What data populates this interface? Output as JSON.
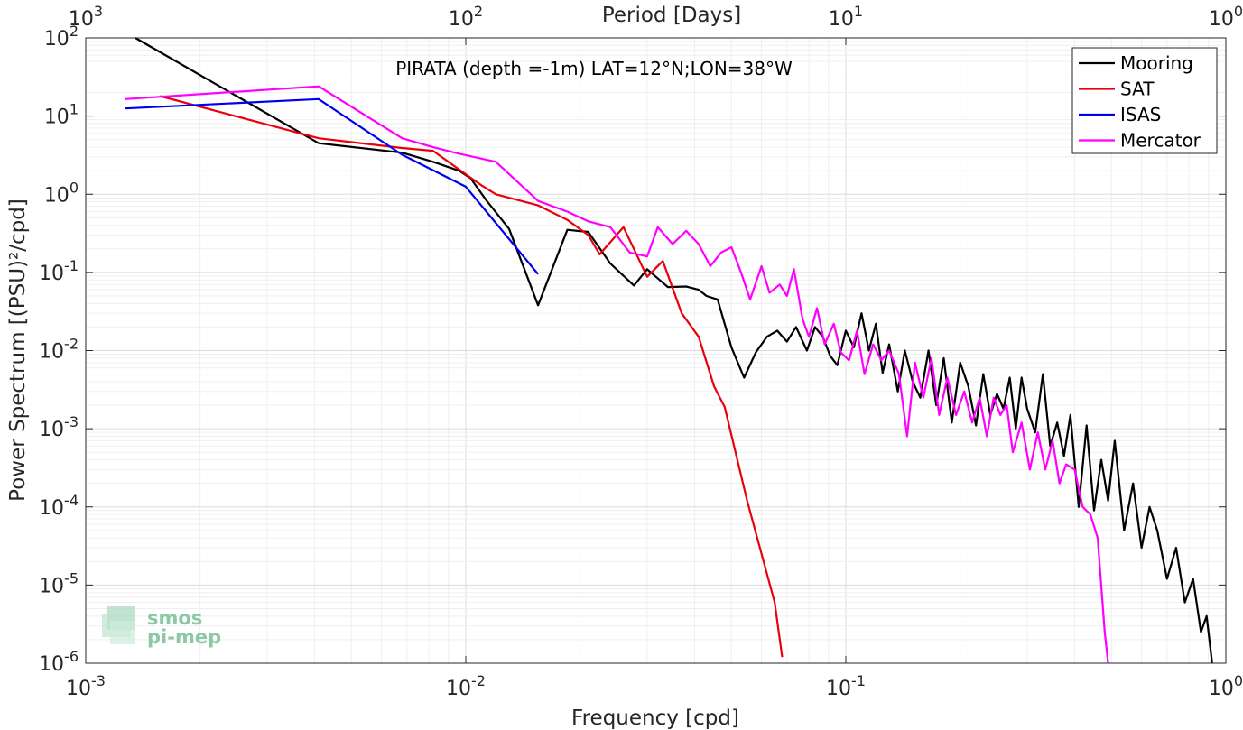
{
  "chart_data": {
    "type": "line",
    "title": "",
    "annotation": "PIRATA (depth =-1m) LAT=12°N;LON=38°W",
    "xlabel": "Frequency [cpd]",
    "ylabel": "Power Spectrum [(PSU)²/cpd]",
    "top_xlabel": "Period [Days]",
    "x_scale": "log",
    "y_scale": "log",
    "xlim": [
      0.001,
      1
    ],
    "ylim": [
      1e-06,
      100
    ],
    "grid": true,
    "legend_position": "top-right",
    "x_ticks": [
      {
        "b": "10",
        "e": "-3"
      },
      {
        "b": "10",
        "e": "-2"
      },
      {
        "b": "10",
        "e": "-1"
      },
      {
        "b": "10",
        "e": "0"
      }
    ],
    "top_ticks": [
      {
        "b": "10",
        "e": "3"
      },
      {
        "b": "10",
        "e": "2"
      },
      {
        "b": "10",
        "e": "1"
      },
      {
        "b": "10",
        "e": "0"
      }
    ],
    "y_ticks": [
      {
        "b": "10",
        "e": "-6"
      },
      {
        "b": "10",
        "e": "-5"
      },
      {
        "b": "10",
        "e": "-4"
      },
      {
        "b": "10",
        "e": "-3"
      },
      {
        "b": "10",
        "e": "-2"
      },
      {
        "b": "10",
        "e": "-1"
      },
      {
        "b": "10",
        "e": "0"
      },
      {
        "b": "10",
        "e": "1"
      },
      {
        "b": "10",
        "e": "2"
      }
    ],
    "series": [
      {
        "name": "Mooring",
        "color": "#000000",
        "points": [
          [
            0.00135,
            100
          ],
          [
            0.0041,
            4.5
          ],
          [
            0.0068,
            3.4
          ],
          [
            0.0082,
            2.6
          ],
          [
            0.0096,
            2.0
          ],
          [
            0.0103,
            1.6
          ],
          [
            0.0113,
            0.85
          ],
          [
            0.013,
            0.36
          ],
          [
            0.0155,
            0.038
          ],
          [
            0.0185,
            0.35
          ],
          [
            0.021,
            0.33
          ],
          [
            0.024,
            0.13
          ],
          [
            0.0277,
            0.068
          ],
          [
            0.03,
            0.11
          ],
          [
            0.034,
            0.065
          ],
          [
            0.038,
            0.066
          ],
          [
            0.041,
            0.06
          ],
          [
            0.043,
            0.05
          ],
          [
            0.046,
            0.045
          ],
          [
            0.05,
            0.011
          ],
          [
            0.054,
            0.0045
          ],
          [
            0.058,
            0.0095
          ],
          [
            0.062,
            0.015
          ],
          [
            0.066,
            0.018
          ],
          [
            0.07,
            0.013
          ],
          [
            0.074,
            0.02
          ],
          [
            0.079,
            0.01
          ],
          [
            0.083,
            0.02
          ],
          [
            0.087,
            0.015
          ],
          [
            0.091,
            0.0085
          ],
          [
            0.095,
            0.0065
          ],
          [
            0.1,
            0.018
          ],
          [
            0.105,
            0.011
          ],
          [
            0.11,
            0.03
          ],
          [
            0.115,
            0.01
          ],
          [
            0.12,
            0.022
          ],
          [
            0.125,
            0.0052
          ],
          [
            0.13,
            0.012
          ],
          [
            0.137,
            0.003
          ],
          [
            0.143,
            0.01
          ],
          [
            0.15,
            0.004
          ],
          [
            0.157,
            0.0025
          ],
          [
            0.165,
            0.01
          ],
          [
            0.173,
            0.002
          ],
          [
            0.181,
            0.008
          ],
          [
            0.19,
            0.0012
          ],
          [
            0.2,
            0.007
          ],
          [
            0.21,
            0.0035
          ],
          [
            0.22,
            0.0011
          ],
          [
            0.23,
            0.005
          ],
          [
            0.24,
            0.0015
          ],
          [
            0.25,
            0.0028
          ],
          [
            0.26,
            0.0018
          ],
          [
            0.27,
            0.0045
          ],
          [
            0.28,
            0.001
          ],
          [
            0.29,
            0.0045
          ],
          [
            0.3,
            0.0018
          ],
          [
            0.315,
            0.0009
          ],
          [
            0.33,
            0.005
          ],
          [
            0.345,
            0.0006
          ],
          [
            0.36,
            0.0012
          ],
          [
            0.375,
            0.00045
          ],
          [
            0.39,
            0.0015
          ],
          [
            0.41,
            0.0001
          ],
          [
            0.43,
            0.0011
          ],
          [
            0.45,
            9e-05
          ],
          [
            0.47,
            0.0004
          ],
          [
            0.49,
            0.00012
          ],
          [
            0.51,
            0.0007
          ],
          [
            0.54,
            5e-05
          ],
          [
            0.57,
            0.0002
          ],
          [
            0.6,
            3e-05
          ],
          [
            0.63,
            0.0001
          ],
          [
            0.66,
            5e-05
          ],
          [
            0.7,
            1.2e-05
          ],
          [
            0.74,
            3e-05
          ],
          [
            0.78,
            6e-06
          ],
          [
            0.82,
            1.2e-05
          ],
          [
            0.86,
            2.5e-06
          ],
          [
            0.89,
            4e-06
          ],
          [
            0.92,
            1e-06
          ]
        ]
      },
      {
        "name": "SAT",
        "color": "#e8000b",
        "points": [
          [
            0.00157,
            18
          ],
          [
            0.0041,
            5.2
          ],
          [
            0.0068,
            3.9
          ],
          [
            0.0082,
            3.6
          ],
          [
            0.01,
            1.8
          ],
          [
            0.011,
            1.3
          ],
          [
            0.012,
            1.0
          ],
          [
            0.0155,
            0.72
          ],
          [
            0.0185,
            0.47
          ],
          [
            0.021,
            0.3
          ],
          [
            0.0225,
            0.17
          ],
          [
            0.026,
            0.38
          ],
          [
            0.03,
            0.088
          ],
          [
            0.033,
            0.14
          ],
          [
            0.037,
            0.03
          ],
          [
            0.041,
            0.015
          ],
          [
            0.045,
            0.0035
          ],
          [
            0.048,
            0.0019
          ],
          [
            0.055,
            0.00012
          ],
          [
            0.065,
            6e-06
          ],
          [
            0.068,
            1.2e-06
          ]
        ]
      },
      {
        "name": "ISAS",
        "color": "#0000ee",
        "points": [
          [
            0.00127,
            12.5
          ],
          [
            0.0041,
            16.5
          ],
          [
            0.0068,
            3.2
          ],
          [
            0.01,
            1.25
          ],
          [
            0.0155,
            0.095
          ]
        ]
      },
      {
        "name": "Mercator",
        "color": "#ff00ff",
        "points": [
          [
            0.00127,
            16.5
          ],
          [
            0.0041,
            24
          ],
          [
            0.0068,
            5.2
          ],
          [
            0.0082,
            4.0
          ],
          [
            0.0096,
            3.3
          ],
          [
            0.012,
            2.6
          ],
          [
            0.0155,
            0.82
          ],
          [
            0.0185,
            0.6
          ],
          [
            0.021,
            0.45
          ],
          [
            0.024,
            0.38
          ],
          [
            0.027,
            0.18
          ],
          [
            0.03,
            0.16
          ],
          [
            0.032,
            0.38
          ],
          [
            0.035,
            0.23
          ],
          [
            0.038,
            0.34
          ],
          [
            0.041,
            0.23
          ],
          [
            0.044,
            0.12
          ],
          [
            0.047,
            0.18
          ],
          [
            0.05,
            0.21
          ],
          [
            0.053,
            0.1
          ],
          [
            0.056,
            0.045
          ],
          [
            0.06,
            0.12
          ],
          [
            0.063,
            0.055
          ],
          [
            0.067,
            0.07
          ],
          [
            0.07,
            0.05
          ],
          [
            0.073,
            0.11
          ],
          [
            0.077,
            0.025
          ],
          [
            0.08,
            0.015
          ],
          [
            0.084,
            0.035
          ],
          [
            0.088,
            0.012
          ],
          [
            0.093,
            0.022
          ],
          [
            0.097,
            0.0095
          ],
          [
            0.102,
            0.0075
          ],
          [
            0.107,
            0.018
          ],
          [
            0.112,
            0.005
          ],
          [
            0.118,
            0.012
          ],
          [
            0.124,
            0.0075
          ],
          [
            0.13,
            0.01
          ],
          [
            0.138,
            0.005
          ],
          [
            0.145,
            0.0008
          ],
          [
            0.152,
            0.007
          ],
          [
            0.16,
            0.0025
          ],
          [
            0.168,
            0.008
          ],
          [
            0.176,
            0.0015
          ],
          [
            0.185,
            0.0045
          ],
          [
            0.195,
            0.0015
          ],
          [
            0.205,
            0.003
          ],
          [
            0.215,
            0.0012
          ],
          [
            0.225,
            0.0025
          ],
          [
            0.235,
            0.0008
          ],
          [
            0.245,
            0.0025
          ],
          [
            0.255,
            0.0015
          ],
          [
            0.265,
            0.002
          ],
          [
            0.275,
            0.0005
          ],
          [
            0.29,
            0.0012
          ],
          [
            0.305,
            0.0003
          ],
          [
            0.32,
            0.0009
          ],
          [
            0.335,
            0.0003
          ],
          [
            0.35,
            0.0007
          ],
          [
            0.365,
            0.0002
          ],
          [
            0.38,
            0.00035
          ],
          [
            0.4,
            0.0003
          ],
          [
            0.42,
            0.0001
          ],
          [
            0.44,
            8e-05
          ],
          [
            0.46,
            4e-05
          ],
          [
            0.48,
            2.5e-06
          ],
          [
            0.49,
            1e-06
          ]
        ]
      }
    ]
  },
  "watermark": {
    "line1": "smos",
    "line2": "pi-mep"
  }
}
